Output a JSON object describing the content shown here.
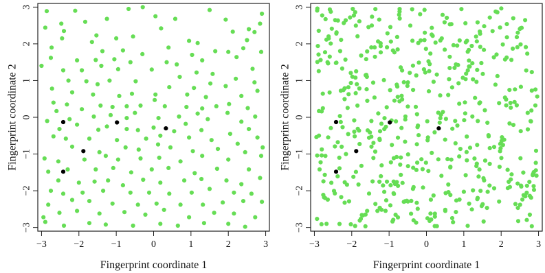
{
  "chart_data": [
    {
      "type": "scatter",
      "xlabel": "Fingerprint coordinate 1",
      "ylabel": "Fingerprint coordinate 2",
      "xlim": [
        -3.1,
        3.1
      ],
      "ylim": [
        -3.1,
        3.1
      ],
      "xticks": [
        -3,
        -2,
        -1,
        0,
        1,
        2,
        3
      ],
      "yticks": [
        -3,
        -2,
        -1,
        0,
        1,
        2,
        3
      ],
      "xtick_labels": [
        "−3",
        "−2",
        "−1",
        "0",
        "1",
        "2",
        "3"
      ],
      "ytick_labels": [
        "−3",
        "−2",
        "−1",
        "0",
        "1",
        "2",
        "3"
      ],
      "grid": false,
      "series": [
        {
          "color": "#66dd55",
          "points": [
            [
              -2.86,
              2.89
            ],
            [
              -2.1,
              2.9
            ],
            [
              -1.83,
              2.6
            ],
            [
              -1.25,
              2.68
            ],
            [
              -0.67,
              2.95
            ],
            [
              -0.29,
              3.0
            ],
            [
              0.05,
              2.75
            ],
            [
              0.58,
              2.68
            ],
            [
              1.5,
              2.92
            ],
            [
              1.93,
              2.66
            ],
            [
              2.55,
              2.4
            ],
            [
              2.9,
              2.82
            ],
            [
              -2.9,
              2.44
            ],
            [
              -2.47,
              2.55
            ],
            [
              -2.4,
              2.35
            ],
            [
              -1.53,
              2.23
            ],
            [
              -1.0,
              2.15
            ],
            [
              -0.55,
              2.2
            ],
            [
              0.2,
              2.42
            ],
            [
              0.95,
              2.08
            ],
            [
              1.18,
              2.02
            ],
            [
              2.12,
              2.33
            ],
            [
              2.5,
              2.1
            ],
            [
              2.7,
              2.32
            ],
            [
              2.85,
              2.55
            ],
            [
              -2.73,
              1.9
            ],
            [
              -2.45,
              2.15
            ],
            [
              -1.65,
              2.05
            ],
            [
              -1.37,
              1.8
            ],
            [
              -0.82,
              1.82
            ],
            [
              -0.3,
              1.72
            ],
            [
              0.4,
              1.9
            ],
            [
              1.03,
              1.7
            ],
            [
              1.65,
              1.8
            ],
            [
              2.0,
              1.78
            ],
            [
              2.4,
              1.88
            ],
            [
              2.88,
              1.78
            ],
            [
              -3.0,
              1.4
            ],
            [
              -2.75,
              1.62
            ],
            [
              -2.05,
              1.55
            ],
            [
              -1.55,
              1.56
            ],
            [
              -1.05,
              1.58
            ],
            [
              -0.62,
              1.5
            ],
            [
              0.62,
              1.44
            ],
            [
              1.3,
              1.55
            ],
            [
              2.22,
              1.64
            ],
            [
              -2.42,
              1.28
            ],
            [
              -1.92,
              1.28
            ],
            [
              -1.4,
              1.4
            ],
            [
              -0.95,
              1.31
            ],
            [
              -0.05,
              1.3
            ],
            [
              0.35,
              1.5
            ],
            [
              0.7,
              1.1
            ],
            [
              1.15,
              1.22
            ],
            [
              1.58,
              1.18
            ],
            [
              2.2,
              1.05
            ],
            [
              2.65,
              1.32
            ],
            [
              -2.28,
              1.0
            ],
            [
              -1.8,
              0.98
            ],
            [
              -1.5,
              0.9
            ],
            [
              -1.18,
              1.0
            ],
            [
              -0.48,
              0.98
            ],
            [
              0.05,
              0.62
            ],
            [
              0.42,
              0.82
            ],
            [
              1.08,
              0.8
            ],
            [
              1.52,
              0.92
            ],
            [
              1.93,
              0.85
            ],
            [
              2.35,
              0.58
            ],
            [
              2.7,
              0.95
            ],
            [
              -2.72,
              0.78
            ],
            [
              -2.18,
              0.68
            ],
            [
              -1.62,
              0.62
            ],
            [
              -0.92,
              0.58
            ],
            [
              -0.58,
              0.64
            ],
            [
              0.03,
              0.47
            ],
            [
              0.9,
              0.62
            ],
            [
              1.4,
              0.55
            ],
            [
              2.02,
              0.36
            ],
            [
              2.78,
              0.72
            ],
            [
              -2.68,
              0.4
            ],
            [
              -2.32,
              0.35
            ],
            [
              -1.92,
              0.22
            ],
            [
              -1.42,
              0.32
            ],
            [
              -1.1,
              0.28
            ],
            [
              -0.72,
              0.3
            ],
            [
              -0.35,
              0.32
            ],
            [
              0.3,
              0.3
            ],
            [
              0.88,
              0.28
            ],
            [
              1.3,
              0.24
            ],
            [
              1.68,
              0.3
            ],
            [
              2.52,
              0.25
            ],
            [
              -2.6,
              0.17
            ],
            [
              -2.25,
              -0.05
            ],
            [
              -1.6,
              0.02
            ],
            [
              -1.15,
              0.06
            ],
            [
              -0.72,
              -0.02
            ],
            [
              -0.5,
              0.12
            ],
            [
              0.13,
              -0.02
            ],
            [
              0.68,
              0.02
            ],
            [
              1.18,
              0.1
            ],
            [
              1.45,
              -0.05
            ],
            [
              1.98,
              0.12
            ],
            [
              2.35,
              -0.12
            ],
            [
              2.72,
              0.02
            ],
            [
              -2.85,
              -0.1
            ],
            [
              -2.52,
              -0.32
            ],
            [
              -2.05,
              -0.2
            ],
            [
              -1.48,
              -0.34
            ],
            [
              -1.25,
              -0.25
            ],
            [
              -0.72,
              -0.32
            ],
            [
              -0.42,
              -0.35
            ],
            [
              0.0,
              -0.28
            ],
            [
              0.55,
              -0.38
            ],
            [
              0.86,
              -0.18
            ],
            [
              1.28,
              -0.35
            ],
            [
              2.05,
              -0.45
            ],
            [
              2.55,
              -0.32
            ],
            [
              -2.68,
              -0.52
            ],
            [
              -2.35,
              -0.58
            ],
            [
              -1.72,
              -0.58
            ],
            [
              -0.98,
              -0.62
            ],
            [
              -0.2,
              -0.58
            ],
            [
              0.18,
              -0.5
            ],
            [
              0.95,
              -0.55
            ],
            [
              1.55,
              -0.62
            ],
            [
              2.25,
              -0.72
            ],
            [
              2.78,
              -0.55
            ],
            [
              -2.18,
              -0.8
            ],
            [
              -1.45,
              -0.95
            ],
            [
              -0.75,
              -0.82
            ],
            [
              -0.4,
              -0.88
            ],
            [
              0.12,
              -0.74
            ],
            [
              0.45,
              -0.82
            ],
            [
              1.05,
              -0.92
            ],
            [
              1.72,
              -0.86
            ],
            [
              2.45,
              -0.95
            ],
            [
              2.92,
              -0.82
            ],
            [
              -2.92,
              -1.12
            ],
            [
              -2.55,
              -1.2
            ],
            [
              -1.85,
              -1.15
            ],
            [
              -1.28,
              -1.05
            ],
            [
              -0.95,
              -1.15
            ],
            [
              -0.35,
              -1.12
            ],
            [
              0.15,
              -1.1
            ],
            [
              0.72,
              -1.2
            ],
            [
              1.3,
              -1.05
            ],
            [
              2.0,
              -1.15
            ],
            [
              2.88,
              -1.05
            ],
            [
              -2.82,
              -1.48
            ],
            [
              -2.3,
              -1.42
            ],
            [
              -1.55,
              -1.42
            ],
            [
              -1.08,
              -1.38
            ],
            [
              -0.6,
              -1.5
            ],
            [
              -0.05,
              -1.42
            ],
            [
              0.4,
              -1.38
            ],
            [
              1.1,
              -1.52
            ],
            [
              1.7,
              -1.4
            ],
            [
              2.55,
              -1.42
            ],
            [
              -2.55,
              -1.72
            ],
            [
              -2.0,
              -1.78
            ],
            [
              -1.58,
              -1.75
            ],
            [
              -1.22,
              -1.72
            ],
            [
              -0.82,
              -1.85
            ],
            [
              -0.28,
              -1.7
            ],
            [
              0.18,
              -1.78
            ],
            [
              0.82,
              -1.72
            ],
            [
              1.28,
              -1.68
            ],
            [
              1.95,
              -1.72
            ],
            [
              2.35,
              -1.82
            ],
            [
              2.85,
              -1.65
            ],
            [
              -2.75,
              -2.0
            ],
            [
              -2.42,
              -2.08
            ],
            [
              -1.9,
              -2.05
            ],
            [
              -1.35,
              -2.0
            ],
            [
              -0.62,
              -2.05
            ],
            [
              -0.12,
              -2.05
            ],
            [
              0.42,
              -2.08
            ],
            [
              1.02,
              -2.05
            ],
            [
              1.5,
              -1.95
            ],
            [
              2.15,
              -2.05
            ],
            [
              2.62,
              -2.08
            ],
            [
              -2.82,
              -2.38
            ],
            [
              -2.18,
              -2.25
            ],
            [
              -1.72,
              -2.28
            ],
            [
              -1.1,
              -2.35
            ],
            [
              -0.42,
              -2.38
            ],
            [
              0.08,
              -2.35
            ],
            [
              0.72,
              -2.38
            ],
            [
              1.32,
              -2.38
            ],
            [
              1.85,
              -2.32
            ],
            [
              2.4,
              -2.28
            ],
            [
              2.9,
              -2.3
            ],
            [
              -2.95,
              -2.72
            ],
            [
              -2.52,
              -2.6
            ],
            [
              -2.05,
              -2.55
            ],
            [
              -1.45,
              -2.62
            ],
            [
              -0.78,
              -2.58
            ],
            [
              -0.22,
              -2.65
            ],
            [
              0.28,
              -2.52
            ],
            [
              0.95,
              -2.72
            ],
            [
              1.62,
              -2.6
            ],
            [
              2.15,
              -2.62
            ],
            [
              2.72,
              -2.72
            ],
            [
              -2.9,
              -2.85
            ],
            [
              -2.4,
              -2.95
            ],
            [
              -1.72,
              -2.88
            ],
            [
              -1.28,
              -2.92
            ],
            [
              -0.55,
              -2.95
            ],
            [
              0.18,
              -2.9
            ],
            [
              0.65,
              -2.95
            ],
            [
              1.35,
              -2.88
            ],
            [
              2.0,
              -2.9
            ],
            [
              2.45,
              -2.98
            ]
          ]
        },
        {
          "color": "#000000",
          "points": [
            [
              -2.42,
              -0.13
            ],
            [
              -0.98,
              -0.14
            ],
            [
              0.33,
              -0.3
            ],
            [
              -1.88,
              -0.92
            ],
            [
              -2.42,
              -1.48
            ]
          ]
        }
      ]
    },
    {
      "type": "scatter",
      "xlabel": "Fingerprint coordinate 1",
      "ylabel": "Fingerprint coordinate 2",
      "xlim": [
        -3.1,
        3.1
      ],
      "ylim": [
        -3.1,
        3.1
      ],
      "xticks": [
        -3,
        -2,
        -1,
        0,
        1,
        2,
        3
      ],
      "yticks": [
        -3,
        -2,
        -1,
        0,
        1,
        2,
        3
      ],
      "xtick_labels": [
        "−3",
        "−2",
        "−1",
        "0",
        "1",
        "2",
        "3"
      ],
      "ytick_labels": [
        "−3",
        "−2",
        "−1",
        "0",
        "1",
        "2",
        "3"
      ],
      "grid": false,
      "series": [
        {
          "color": "#66dd55",
          "density": 520,
          "seed": 7
        },
        {
          "color": "#000000",
          "points": [
            [
              -2.42,
              -0.13
            ],
            [
              -0.98,
              -0.14
            ],
            [
              0.33,
              -0.3
            ],
            [
              -1.88,
              -0.92
            ],
            [
              -2.42,
              -1.48
            ]
          ]
        }
      ]
    }
  ]
}
